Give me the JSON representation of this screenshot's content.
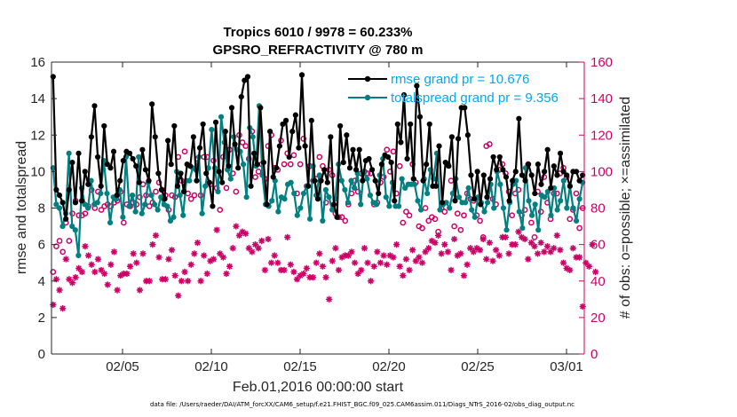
{
  "chart_data": {
    "type": "line",
    "title": "Tropics 6010 / 9978 = 60.233%",
    "subtitle": "GPSRO_REFRACTIVITY @ 780 m",
    "xlabel": "Feb.01,2016 00:00:00 start",
    "ylabel": "rmse and totalspread",
    "y2label": "# of obs: o=possible; ×=assimilated",
    "footer": "data file: /Users/raeder/DAI/ATM_forcXX/CAM6_setup/f.e21.FHIST_BGC.f09_025.CAM6assim.011/Diags_NTrS_2016-02/obs_diag_output.nc",
    "xlim": [
      1,
      61
    ],
    "ylim": [
      0,
      16
    ],
    "y2lim": [
      0,
      160
    ],
    "x_ticks": [
      9,
      19,
      29,
      39,
      49,
      59
    ],
    "x_tick_labels": [
      "02/05",
      "02/10",
      "02/15",
      "02/20",
      "02/25",
      "03/01"
    ],
    "y_ticks": [
      0,
      2,
      4,
      6,
      8,
      10,
      12,
      14,
      16
    ],
    "y_tick_labels": [
      "0",
      "2",
      "4",
      "6",
      "8",
      "10",
      "12",
      "14",
      "16"
    ],
    "y2_ticks": [
      0,
      20,
      40,
      60,
      80,
      100,
      120,
      140,
      160
    ],
    "y2_tick_labels": [
      "0",
      "20",
      "40",
      "60",
      "80",
      "100",
      "120",
      "140",
      "160"
    ],
    "colors": {
      "rmse": "#000000",
      "spread": "#008080",
      "obs": "#cc0066",
      "legend_text": "#00aaee",
      "axis": "#262626"
    },
    "series": [
      {
        "name": "rmse grand pr = 10.676",
        "axis": "left",
        "marker": "dot",
        "values": [
          15.2,
          9,
          8.7,
          8.3,
          7.4,
          9,
          10.5,
          8.3,
          11,
          8.4,
          10,
          9.3,
          11.9,
          13.6,
          10.8,
          9.2,
          12.5,
          10.4,
          10.2,
          11.1,
          8.7,
          9.5,
          10.6,
          11.1,
          11,
          10.7,
          10.3,
          9.4,
          11.2,
          10.1,
          9.5,
          13.7,
          11.9,
          9.9,
          9,
          8.5,
          11.7,
          10.4,
          12.5,
          9.2,
          9.9,
          8.9,
          10.4,
          10.3,
          11.9,
          9.5,
          11.3,
          12.6,
          9.9,
          9.4,
          8.1,
          12.7,
          10,
          9.4,
          12.2,
          10.3,
          13.5,
          11.5,
          10.2,
          14.1,
          15,
          15.2,
          9.2,
          11,
          10.4,
          13.5,
          10.5,
          8.2,
          12.2,
          9.7,
          10.2,
          11.4,
          12.6,
          12.8,
          10.8,
          12.2,
          13.1,
          11.3,
          15.3,
          11.4,
          9.2,
          12.8,
          9.5,
          8.5,
          9.5,
          10.1,
          9.4,
          11.9,
          8.2,
          7.5,
          12.5,
          10.5,
          12,
          10.2,
          11.2,
          10.1,
          11.2,
          9.5,
          10.6,
          10.7,
          10.1,
          9.5,
          8.8,
          10.4,
          10.9,
          10.8,
          10.5,
          8.4,
          12.6,
          11.6,
          14.2,
          10.7,
          12.6,
          9.6,
          14.7,
          13,
          9.5,
          10.4,
          12.6,
          9.2,
          9.2,
          11.4,
          8.3,
          10.5,
          10.3,
          11.9,
          8.4,
          11.8,
          13.5,
          13.5,
          12,
          9.8,
          8.5,
          10,
          8.2,
          9.8,
          8.6,
          9.6,
          10.8,
          10.1,
          10.8,
          10.1,
          9.7,
          8.4,
          9.5,
          10,
          12.9,
          9.8,
          9.5,
          10.4,
          9.8,
          8.8,
          10.4,
          9.3,
          10,
          11.2,
          9.1,
          10.3,
          9.8,
          11,
          10,
          9.8,
          9.2,
          10,
          10,
          9.5,
          9.8
        ]
      },
      {
        "name": "totalspread grand pr = 9.356",
        "axis": "left",
        "marker": "dot",
        "values": [
          10.2,
          8.2,
          8,
          7,
          7.7,
          11,
          7,
          6.8,
          5.4,
          9.1,
          8.2,
          8,
          9.5,
          8.2,
          8.3,
          8.8,
          10.6,
          8.8,
          7.2,
          8.6,
          8.5,
          9,
          7.5,
          10.8,
          8.1,
          8.7,
          7.8,
          10.8,
          7.7,
          8.2,
          9.4,
          8.7,
          8.2,
          7.9,
          8.6,
          8.2,
          8.1,
          7.3,
          7.5,
          10,
          8.7,
          7.6,
          9.5,
          9.5,
          10.2,
          10.1,
          10.8,
          7.7,
          9.2,
          10.2,
          12.3,
          10.2,
          8.9,
          13,
          11.6,
          10.1,
          9.6,
          11.9,
          11.2,
          11.1,
          10.4,
          8.6,
          12.4,
          11.9,
          10.3,
          13.6,
          9.8,
          8.2,
          8.1,
          8.4,
          9.5,
          7.8,
          8.6,
          8.5,
          9.3,
          9.4,
          8.8,
          7.6,
          8,
          8.8,
          9.2,
          7.4,
          10.3,
          8.7,
          9.8,
          7.3,
          9,
          8.6,
          7.9,
          8.5,
          10.4,
          9.5,
          9,
          8.3,
          9.5,
          9.1,
          9.9,
          8.2,
          10,
          9.6,
          8.7,
          8.3,
          8.2,
          9.8,
          10.7,
          8.6,
          8.1,
          9.4,
          8.1,
          8.1,
          9.6,
          9.1,
          9.3,
          9.3,
          9.3,
          8.4,
          7.9,
          9.6,
          8.8,
          10.1,
          9.6,
          11,
          7.9,
          8.2,
          8.3,
          8,
          8.8,
          9.6,
          8.6,
          8.3,
          8.3,
          9.1,
          7.9,
          7.5,
          8.6,
          8.3,
          7.8,
          8.3,
          9.3,
          8,
          10,
          9.3,
          8,
          6.8,
          8.3,
          9.3,
          9.5,
          7.8,
          6.9,
          10.2,
          8.4,
          7.6,
          8.2,
          6.8,
          8.7,
          8.6,
          8.9,
          7.6,
          9.1,
          7.9,
          8.4,
          9.5,
          8,
          9.2,
          8,
          7.3,
          8.5,
          9.4
        ]
      },
      {
        "name": "possible",
        "axis": "right",
        "marker": "circle",
        "values": [
          45,
          59,
          62,
          56,
          72,
          62,
          77,
          84,
          76,
          76,
          77,
          81,
          90,
          80,
          89,
          79,
          81,
          82,
          81,
          83,
          84,
          89,
          72,
          82,
          81,
          83,
          82,
          86,
          93,
          87,
          81,
          83,
          89,
          94,
          90,
          87,
          79,
          87,
          86,
          108,
          95,
          111,
          88,
          85,
          87,
          107,
          87,
          108,
          108,
          93,
          106,
          91,
          79,
          108,
          91,
          112,
          99,
          89,
          120,
          116,
          114,
          107,
          122,
          97,
          100,
          104,
          96,
          114,
          120,
          102,
          101,
          117,
          104,
          110,
          104,
          109,
          88,
          104,
          118,
          92,
          103,
          95,
          96,
          108,
          103,
          83,
          101,
          98,
          77,
          75,
          75,
          73,
          82,
          88,
          95,
          89,
          99,
          100,
          99,
          99,
          82,
          83,
          94,
          97,
          112,
          100,
          111,
          88,
          103,
          72,
          78,
          76,
          104,
          94,
          70,
          69,
          80,
          73,
          75,
          74,
          67,
          80,
          78,
          104,
          95,
          70,
          77,
          68,
          76,
          88,
          85,
          84,
          76,
          73,
          64,
          114,
          115,
          85,
          82,
          101,
          104,
          99,
          89,
          76,
          88,
          90,
          76,
          79,
          104,
          72,
          64,
          89,
          78,
          97,
          83,
          74,
          88,
          88,
          99,
          102,
          97,
          74,
          79,
          88,
          69,
          80
        ]
      },
      {
        "name": "assimilated",
        "axis": "right",
        "marker": "asterisk",
        "values": [
          27,
          41,
          35,
          25,
          52,
          41,
          39,
          42,
          47,
          45,
          59,
          54,
          49,
          45,
          52,
          46,
          44,
          38,
          49,
          56,
          35,
          43,
          44,
          44,
          48,
          55,
          50,
          35,
          55,
          40,
          40,
          60,
          65,
          53,
          41,
          41,
          52,
          57,
          43,
          32,
          40,
          45,
          40,
          49,
          55,
          61,
          40,
          54,
          44,
          51,
          52,
          68,
          55,
          53,
          44,
          48,
          58,
          70,
          65,
          67,
          66,
          58,
          56,
          60,
          58,
          62,
          46,
          63,
          50,
          54,
          50,
          46,
          46,
          64,
          49,
          45,
          41,
          43,
          44,
          47,
          42,
          42,
          50,
          55,
          48,
          42,
          30,
          51,
          58,
          46,
          53,
          54,
          54,
          56,
          50,
          44,
          46,
          58,
          50,
          40,
          48,
          56,
          50,
          54,
          49,
          54,
          53,
          60,
          48,
          43,
          52,
          46,
          57,
          51,
          53,
          50,
          56,
          58,
          62,
          61,
          65,
          55,
          60,
          56,
          46,
          63,
          54,
          55,
          43,
          49,
          58,
          56,
          58,
          57,
          63,
          52,
          61,
          51,
          57,
          54,
          64,
          64,
          55,
          60,
          60,
          67,
          64,
          63,
          52,
          61,
          59,
          55,
          61,
          56,
          59,
          56,
          58,
          65,
          57,
          50,
          47,
          46,
          58,
          53,
          53,
          26,
          50,
          48,
          60,
          45
        ]
      }
    ]
  }
}
